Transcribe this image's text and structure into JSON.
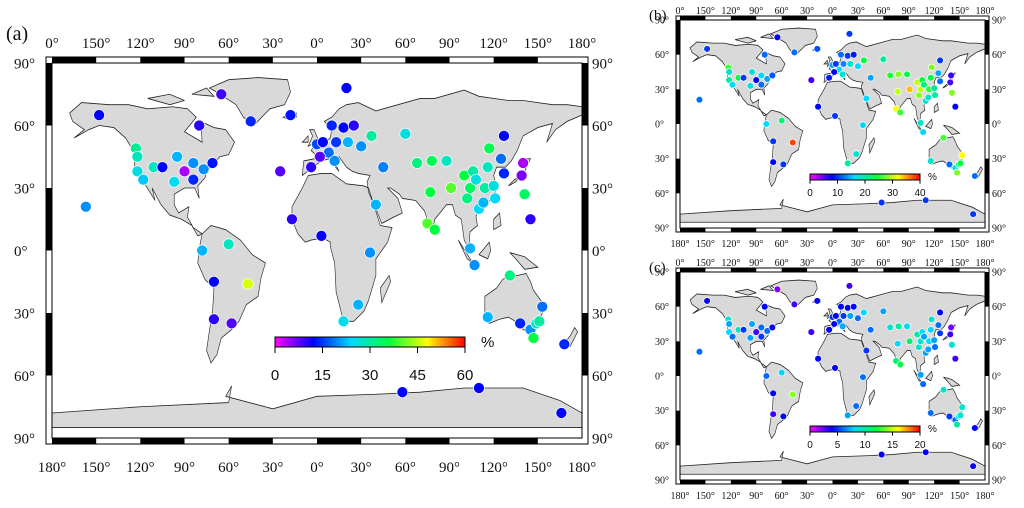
{
  "panels": [
    {
      "label": "(a)",
      "top_ticks": [
        "0°",
        "150°",
        "120°",
        "90°",
        "60°",
        "30°",
        "0°",
        "30°",
        "60°",
        "90°",
        "120°",
        "150°",
        "180°"
      ],
      "bottom_ticks": [
        "180°",
        "150°",
        "120°",
        "90°",
        "60°",
        "30°",
        "0°",
        "30°",
        "60°",
        "90°",
        "120°",
        "150°",
        "180°"
      ],
      "left_ticks": [
        "90°",
        "60°",
        "30°",
        "0°",
        "30°",
        "60°",
        "90°"
      ],
      "right_ticks": [
        "90°",
        "60°",
        "30°",
        "0°",
        "30°",
        "60°",
        "90°"
      ],
      "colorbar": {
        "ticks": [
          "0",
          "15",
          "30",
          "45",
          "60"
        ],
        "min": 0,
        "max": 60,
        "unit": "%"
      }
    },
    {
      "label": "(b)",
      "top_ticks": [
        "0°",
        "150°",
        "120°",
        "90°",
        "60°",
        "30°",
        "0°",
        "30°",
        "60°",
        "90°",
        "120°",
        "150°",
        "180°"
      ],
      "bottom_ticks": [
        "180°",
        "150°",
        "120°",
        "90°",
        "60°",
        "30°",
        "0°",
        "30°",
        "60°",
        "90°",
        "120°",
        "150°",
        "180°"
      ],
      "left_ticks": [
        "90°",
        "60°",
        "30°",
        "0°",
        "30°",
        "60°",
        "90°"
      ],
      "right_ticks": [
        "90°",
        "60°",
        "30°",
        "0°",
        "30°",
        "60°",
        "90°"
      ],
      "colorbar": {
        "ticks": [
          "0",
          "10",
          "20",
          "30",
          "40"
        ],
        "min": 0,
        "max": 40,
        "unit": "%"
      }
    },
    {
      "label": "(c)",
      "top_ticks": [
        "0°",
        "150°",
        "120°",
        "90°",
        "60°",
        "30°",
        "0°",
        "30°",
        "60°",
        "90°",
        "120°",
        "150°",
        "180°"
      ],
      "bottom_ticks": [
        "180°",
        "150°",
        "120°",
        "90°",
        "60°",
        "30°",
        "0°",
        "30°",
        "60°",
        "90°",
        "120°",
        "150°",
        "180°"
      ],
      "left_ticks": [
        "90°",
        "60°",
        "30°",
        "0°",
        "30°",
        "60°",
        "90°"
      ],
      "right_ticks": [
        "90°",
        "60°",
        "30°",
        "0°",
        "30°",
        "60°",
        "90°"
      ],
      "colorbar": {
        "ticks": [
          "0",
          "5",
          "10",
          "15",
          "20"
        ],
        "min": 0,
        "max": 20,
        "unit": "%"
      }
    }
  ],
  "colors": {
    "land": "#d9d9d9",
    "frame": "#000000",
    "colormap": [
      "#ff00ff",
      "#0000ff",
      "#00d9ff",
      "#00ff40",
      "#ffff00",
      "#ff0000"
    ]
  },
  "stations": [
    {
      "lon": -157,
      "lat": 21,
      "a": 20,
      "b": 12,
      "c": 6
    },
    {
      "lon": -148,
      "lat": 65,
      "a": 12,
      "b": 10,
      "c": 4
    },
    {
      "lon": -123,
      "lat": 49,
      "a": 31,
      "b": 26,
      "c": 9
    },
    {
      "lon": -122,
      "lat": 45,
      "a": 28,
      "b": 18,
      "c": 7
    },
    {
      "lon": -122,
      "lat": 38,
      "a": 26,
      "b": 20,
      "c": 8
    },
    {
      "lon": -118,
      "lat": 34,
      "a": 23,
      "b": 16,
      "c": 6
    },
    {
      "lon": -111,
      "lat": 40,
      "a": 28,
      "b": 24,
      "c": 9
    },
    {
      "lon": -105,
      "lat": 40,
      "a": 12,
      "b": 10,
      "c": 5
    },
    {
      "lon": -97,
      "lat": 33,
      "a": 25,
      "b": 17,
      "c": 7
    },
    {
      "lon": -95,
      "lat": 45,
      "a": 22,
      "b": 18,
      "c": 7
    },
    {
      "lon": -90,
      "lat": 38,
      "a": 4,
      "b": 8,
      "c": 3
    },
    {
      "lon": -84,
      "lat": 34,
      "a": 14,
      "b": 12,
      "c": 5
    },
    {
      "lon": -84,
      "lat": 42,
      "a": 20,
      "b": 16,
      "c": 6
    },
    {
      "lon": -77,
      "lat": 39,
      "a": 20,
      "b": 14,
      "c": 6
    },
    {
      "lon": -71,
      "lat": 42,
      "a": 13,
      "b": 11,
      "c": 4
    },
    {
      "lon": -80,
      "lat": 60,
      "a": 10,
      "b": 12,
      "c": 4
    },
    {
      "lon": -65,
      "lat": 75,
      "a": 9,
      "b": 8,
      "c": 2
    },
    {
      "lon": -45,
      "lat": 62,
      "a": 14,
      "b": 12,
      "c": 3
    },
    {
      "lon": -18,
      "lat": 65,
      "a": 13,
      "b": 11,
      "c": 4
    },
    {
      "lon": -25,
      "lat": 38,
      "a": 8,
      "b": 6,
      "c": 3
    },
    {
      "lon": 20,
      "lat": 78,
      "a": 12,
      "b": 10,
      "c": 3
    },
    {
      "lon": 10,
      "lat": 60,
      "a": 14,
      "b": 12,
      "c": 4
    },
    {
      "lon": 18,
      "lat": 59,
      "a": 12,
      "b": 10,
      "c": 4
    },
    {
      "lon": 25,
      "lat": 60,
      "a": 10,
      "b": 9,
      "c": 4
    },
    {
      "lon": 0,
      "lat": 51,
      "a": 16,
      "b": 14,
      "c": 5
    },
    {
      "lon": 4,
      "lat": 52,
      "a": 12,
      "b": 10,
      "c": 4
    },
    {
      "lon": 13,
      "lat": 52,
      "a": 15,
      "b": 13,
      "c": 5
    },
    {
      "lon": 8,
      "lat": 47,
      "a": 18,
      "b": 16,
      "c": 6
    },
    {
      "lon": 2,
      "lat": 45,
      "a": 8,
      "b": 8,
      "c": 4
    },
    {
      "lon": -4,
      "lat": 40,
      "a": 10,
      "b": 9,
      "c": 4
    },
    {
      "lon": 12,
      "lat": 43,
      "a": 20,
      "b": 18,
      "c": 7
    },
    {
      "lon": 21,
      "lat": 52,
      "a": 22,
      "b": 18,
      "c": 7
    },
    {
      "lon": 30,
      "lat": 50,
      "a": 20,
      "b": 16,
      "c": 6
    },
    {
      "lon": 37,
      "lat": 55,
      "a": 30,
      "b": 24,
      "c": 8
    },
    {
      "lon": 60,
      "lat": 56,
      "a": 26,
      "b": 20,
      "c": 7
    },
    {
      "lon": 45,
      "lat": 40,
      "a": 19,
      "b": 14,
      "c": 6
    },
    {
      "lon": 40,
      "lat": 22,
      "a": 22,
      "b": 16,
      "c": 5
    },
    {
      "lon": 68,
      "lat": 42,
      "a": 32,
      "b": 25,
      "c": 9
    },
    {
      "lon": 78,
      "lat": 43,
      "a": 35,
      "b": 28,
      "c": 10
    },
    {
      "lon": 77,
      "lat": 28,
      "a": 36,
      "b": 30,
      "c": 8
    },
    {
      "lon": 75,
      "lat": 13,
      "a": 40,
      "b": 32,
      "c": 11
    },
    {
      "lon": 80,
      "lat": 10,
      "a": 36,
      "b": 26,
      "c": 12
    },
    {
      "lon": 88,
      "lat": 43,
      "a": 28,
      "b": 24,
      "c": 8
    },
    {
      "lon": 91,
      "lat": 30,
      "a": 40,
      "b": 34,
      "c": 11
    },
    {
      "lon": 100,
      "lat": 36,
      "a": 36,
      "b": 30,
      "c": 10
    },
    {
      "lon": 102,
      "lat": 25,
      "a": 32,
      "b": 28,
      "c": 9
    },
    {
      "lon": 104,
      "lat": 30,
      "a": 34,
      "b": 30,
      "c": 9
    },
    {
      "lon": 106,
      "lat": 38,
      "a": 30,
      "b": 24,
      "c": 8
    },
    {
      "lon": 108,
      "lat": 34,
      "a": 26,
      "b": 22,
      "c": 7
    },
    {
      "lon": 110,
      "lat": 20,
      "a": 24,
      "b": 18,
      "c": 7
    },
    {
      "lon": 113,
      "lat": 23,
      "a": 22,
      "b": 18,
      "c": 7
    },
    {
      "lon": 114,
      "lat": 30,
      "a": 30,
      "b": 25,
      "c": 8
    },
    {
      "lon": 116,
      "lat": 40,
      "a": 28,
      "b": 24,
      "c": 8
    },
    {
      "lon": 120,
      "lat": 31,
      "a": 26,
      "b": 20,
      "c": 7
    },
    {
      "lon": 121,
      "lat": 25,
      "a": 24,
      "b": 20,
      "c": 6
    },
    {
      "lon": 117,
      "lat": 49,
      "a": 35,
      "b": 28,
      "c": 9
    },
    {
      "lon": 125,
      "lat": 44,
      "a": 18,
      "b": 14,
      "c": 6
    },
    {
      "lon": 127,
      "lat": 37,
      "a": 14,
      "b": 12,
      "c": 5
    },
    {
      "lon": 127,
      "lat": 55,
      "a": 12,
      "b": 10,
      "c": 4
    },
    {
      "lon": 139,
      "lat": 36,
      "a": 6,
      "b": 6,
      "c": 3
    },
    {
      "lon": 140,
      "lat": 42,
      "a": 4,
      "b": 6,
      "c": 2
    },
    {
      "lon": 141,
      "lat": 27,
      "a": 34,
      "b": 28,
      "c": 9
    },
    {
      "lon": 145,
      "lat": 15,
      "a": 10,
      "b": 8,
      "c": 3
    },
    {
      "lon": 104,
      "lat": 1,
      "a": 22,
      "b": 18,
      "c": 7
    },
    {
      "lon": 107,
      "lat": -7,
      "a": 20,
      "b": 16,
      "c": 6
    },
    {
      "lon": 116,
      "lat": -32,
      "a": 22,
      "b": 18,
      "c": 6
    },
    {
      "lon": 131,
      "lat": -12,
      "a": 32,
      "b": 26,
      "c": 9
    },
    {
      "lon": 138,
      "lat": -35,
      "a": 14,
      "b": 12,
      "c": 5
    },
    {
      "lon": 145,
      "lat": -38,
      "a": 20,
      "b": 16,
      "c": 6
    },
    {
      "lon": 149,
      "lat": -35,
      "a": 28,
      "b": 22,
      "c": 8
    },
    {
      "lon": 151,
      "lat": -34,
      "a": 30,
      "b": 24,
      "c": 9
    },
    {
      "lon": 153,
      "lat": -27,
      "a": 18,
      "b": 32,
      "c": 9
    },
    {
      "lon": 147,
      "lat": -42,
      "a": 36,
      "b": 28,
      "c": 10
    },
    {
      "lon": 168,
      "lat": -45,
      "a": 14,
      "b": 12,
      "c": 4
    },
    {
      "lon": 18,
      "lat": -34,
      "a": 25,
      "b": 20,
      "c": 7
    },
    {
      "lon": 28,
      "lat": -26,
      "a": 22,
      "b": 18,
      "c": 6
    },
    {
      "lon": 36,
      "lat": -1,
      "a": 20,
      "b": 16,
      "c": 6
    },
    {
      "lon": 3,
      "lat": 7,
      "a": 12,
      "b": 10,
      "c": 4
    },
    {
      "lon": -17,
      "lat": 15,
      "a": 10,
      "b": 8,
      "c": 4
    },
    {
      "lon": -47,
      "lat": -16,
      "a": 46,
      "b": 38,
      "c": 14
    },
    {
      "lon": -70,
      "lat": -15,
      "a": 12,
      "b": 10,
      "c": 4
    },
    {
      "lon": -70,
      "lat": -33,
      "a": 10,
      "b": 8,
      "c": 3
    },
    {
      "lon": -58,
      "lat": -35,
      "a": 8,
      "b": 10,
      "c": 4
    },
    {
      "lon": -60,
      "lat": 3,
      "a": 28,
      "b": 22,
      "c": 8
    },
    {
      "lon": -78,
      "lat": 0,
      "a": 22,
      "b": 16,
      "c": 6
    },
    {
      "lon": 58,
      "lat": -68,
      "a": 12,
      "b": 10,
      "c": 4
    },
    {
      "lon": 110,
      "lat": -66,
      "a": 12,
      "b": 10,
      "c": 4
    },
    {
      "lon": 166,
      "lat": -78,
      "a": 12,
      "b": 10,
      "c": 4
    }
  ]
}
